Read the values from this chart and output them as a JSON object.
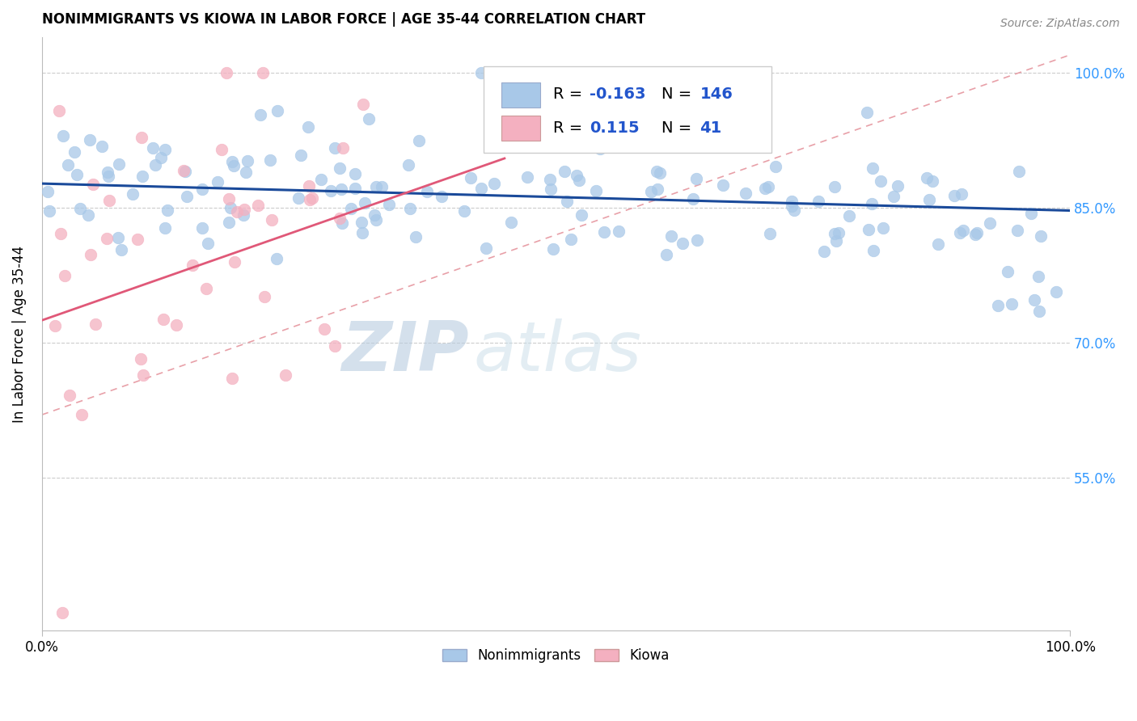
{
  "title": "NONIMMIGRANTS VS KIOWA IN LABOR FORCE | AGE 35-44 CORRELATION CHART",
  "source": "Source: ZipAtlas.com",
  "ylabel": "In Labor Force | Age 35-44",
  "xlim": [
    0.0,
    1.0
  ],
  "ylim": [
    0.38,
    1.04
  ],
  "yticks": [
    0.55,
    0.7,
    0.85,
    1.0
  ],
  "ytick_labels": [
    "55.0%",
    "70.0%",
    "85.0%",
    "100.0%"
  ],
  "xtick_labels": [
    "0.0%",
    "100.0%"
  ],
  "blue_color": "#a8c8e8",
  "pink_color": "#f4b0c0",
  "blue_line_color": "#1a4a9a",
  "pink_solid_color": "#e05878",
  "pink_dash_color": "#e8a0a8",
  "watermark_zip": "ZIP",
  "watermark_atlas": "atlas",
  "legend_blue_label": "Nonimmigrants",
  "legend_pink_label": "Kiowa",
  "blue_intercept": 0.877,
  "blue_slope": -0.03,
  "pink_solid_intercept": 0.725,
  "pink_solid_slope": 0.4,
  "pink_dash_intercept": 0.62,
  "pink_dash_slope": 0.4,
  "blue_seed": 42,
  "pink_seed": 17,
  "blue_N": 146,
  "pink_N": 41,
  "legend_R_blue": "-0.163",
  "legend_N_blue": "146",
  "legend_R_pink": "0.115",
  "legend_N_pink": "41"
}
